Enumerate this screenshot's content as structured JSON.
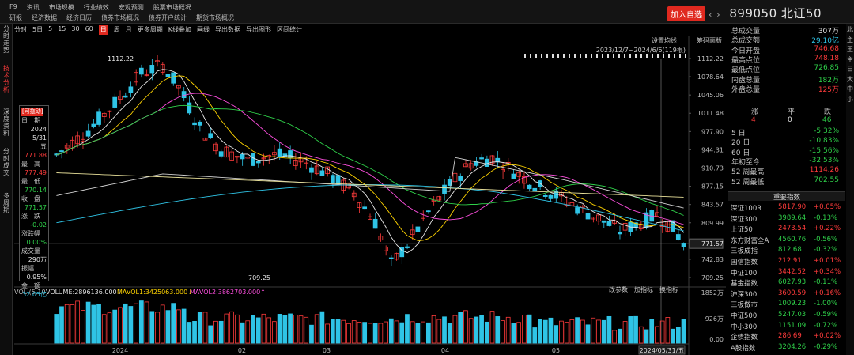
{
  "menu_row1": [
    "F9",
    "资讯",
    "市场规模",
    "行业绩效",
    "宏观预测",
    "股票市场概况"
  ],
  "menu_row2": [
    "研报",
    "经济数据",
    "经济日历",
    "债券市场概况",
    "债券开户统计",
    "期货市场概况"
  ],
  "add_button": "加入自选",
  "stock": {
    "code": "899050",
    "name": "北证50"
  },
  "left_tabs": [
    "分时走势",
    "技术分析",
    "深度资料",
    "分时成交",
    "多周期"
  ],
  "toolbar": [
    "分时",
    "5日",
    "5",
    "15",
    "30",
    "60",
    "日",
    "周",
    "月",
    "更多周期",
    "K线叠加",
    "画线",
    "导出数据",
    "导出图形",
    "区间统计"
  ],
  "toolbar_active": "日",
  "toolbar_label_daily": "(日线)",
  "ma": [
    {
      "label": "MA",
      "color": "#9a9a9a"
    },
    {
      "label": "MA5:779.982↓",
      "color": "#e8e8e8"
    },
    {
      "label": "MA10:784.788↓",
      "color": "#ffd400"
    },
    {
      "label": "MA20:794.611↓",
      "color": "#ff4fe0"
    },
    {
      "label": "MA30:797.358↑",
      "color": "#2fd24a"
    },
    {
      "label": "MA60:826.322↓",
      "color": "#cfcfcf"
    },
    {
      "label": "MA120:887.005↓",
      "color": "#2fc4e6"
    },
    {
      "label": "MA250:864.328↓",
      "color": "#e8e09a"
    }
  ],
  "chart_controls": {
    "set_ma": "设置均线",
    "profile": "筹码面版",
    "range": "2023/12/7~2024/6/6(119根)"
  },
  "infobox": {
    "tag": "[可拖动]",
    "date_label": "日　期",
    "date_year": "2024",
    "date_md": "5/31",
    "date_day": "五",
    "open_label": "开　盘",
    "open": "771.88",
    "high_label": "最　高",
    "high": "777.49",
    "low_label": "最　低",
    "low": "770.14",
    "close_label": "收　盘",
    "close": "771.57",
    "chg_label": "涨　跌",
    "chg": "-0.02",
    "pct_label": "涨跌幅",
    "pct": "0.00%",
    "vol_label": "成交量",
    "vol": "290万",
    "amp_label": "振幅",
    "amp": "0.95%",
    "amt_label": "金　额",
    "amt": "32.05亿"
  },
  "y_axis": [
    "1112.22",
    "1078.64",
    "1045.06",
    "1011.48",
    "977.90",
    "944.31",
    "910.73",
    "877.15",
    "843.57",
    "809.99",
    "776.41",
    "742.83",
    "709.25"
  ],
  "price_marker": "771.57",
  "annotations": {
    "high": "1112.22",
    "low": "709.25"
  },
  "volume": {
    "title": "VOL (5,10)",
    "vol": "VOLUME:2896136.000↓",
    "mavol1": "MAVOL1:3425063.000↓",
    "mavol2": "MAVOL2:3862703.000↑",
    "controls": [
      "改参数",
      "加指标",
      "换指标"
    ],
    "y_axis": [
      "1852万",
      "926万",
      "0.00"
    ],
    "x_axis": [
      "2024",
      "02",
      "03",
      "04",
      "05"
    ],
    "date_marker": "2024/05/31/五"
  },
  "chart_data": {
    "type": "candlestick",
    "range": "2023/12/7~2024/6/6",
    "bars": 119,
    "ylim": [
      709.25,
      1112.22
    ],
    "last": {
      "open": 771.88,
      "high": 777.49,
      "low": 770.14,
      "close": 771.57
    },
    "x_ticks": [
      "2024",
      "02",
      "03",
      "04",
      "05"
    ]
  },
  "quote": {
    "rows": [
      {
        "label": "总成交量",
        "value": "307万",
        "color": "#e0e0e0"
      },
      {
        "label": "总成交额",
        "value": "29.10亿",
        "color": "#2fc4e6"
      },
      {
        "label": "今日开盘",
        "value": "746.68",
        "color": "#ff3b3b"
      },
      {
        "label": "最高点位",
        "value": "748.18",
        "color": "#ff3b3b"
      },
      {
        "label": "最低点位",
        "value": "726.85",
        "color": "#2fd24a"
      },
      {
        "label": "内盘总量",
        "value": "182万",
        "color": "#2fd24a"
      },
      {
        "label": "外盘总量",
        "value": "125万",
        "color": "#ff3b3b"
      }
    ],
    "counts_head": [
      "涨",
      "平",
      "跌"
    ],
    "counts": [
      "4",
      "0",
      "46"
    ],
    "perf": [
      {
        "label": "5 日",
        "value": "-5.32%"
      },
      {
        "label": "20 日",
        "value": "-10.83%"
      },
      {
        "label": "60 日",
        "value": "-15.56%"
      },
      {
        "label": "年初至今",
        "value": "-32.53%"
      },
      {
        "label": "52 周最高",
        "value": "1114.26"
      },
      {
        "label": "52 周最低",
        "value": "702.55"
      }
    ]
  },
  "index_title": "重要指数",
  "indices": [
    {
      "name": "深证100R",
      "price": "5817.90",
      "chg": "+0.05%",
      "dir": "up"
    },
    {
      "name": "深证300",
      "price": "3989.64",
      "chg": "-0.13%",
      "dir": "down"
    },
    {
      "name": "上证50",
      "price": "2473.54",
      "chg": "+0.22%",
      "dir": "up"
    },
    {
      "name": "东方财富全A",
      "price": "4560.76",
      "chg": "-0.56%",
      "dir": "down"
    },
    {
      "name": "三板成指",
      "price": "812.68",
      "chg": "-0.32%",
      "dir": "down"
    },
    {
      "name": "国信指数",
      "price": "212.91",
      "chg": "+0.01%",
      "dir": "up"
    },
    {
      "name": "中证100",
      "price": "3442.52",
      "chg": "+0.34%",
      "dir": "up"
    },
    {
      "name": "基金指数",
      "price": "6027.93",
      "chg": "-0.11%",
      "dir": "down"
    },
    {
      "name": "沪深300",
      "price": "3600.59",
      "chg": "+0.16%",
      "dir": "up"
    },
    {
      "name": "三板做市",
      "price": "1009.23",
      "chg": "-1.00%",
      "dir": "down"
    },
    {
      "name": "中证500",
      "price": "5247.03",
      "chg": "-0.59%",
      "dir": "down"
    },
    {
      "name": "中小300",
      "price": "1151.09",
      "chg": "-0.72%",
      "dir": "down"
    },
    {
      "name": "企债指数",
      "price": "286.69",
      "chg": "+0.02%",
      "dir": "up"
    },
    {
      "name": "A股指数",
      "price": "3204.26",
      "chg": "-0.29%",
      "dir": "down"
    }
  ],
  "right_strip": [
    "北",
    "主",
    "王",
    "主",
    "日",
    "大",
    "中",
    "小"
  ]
}
